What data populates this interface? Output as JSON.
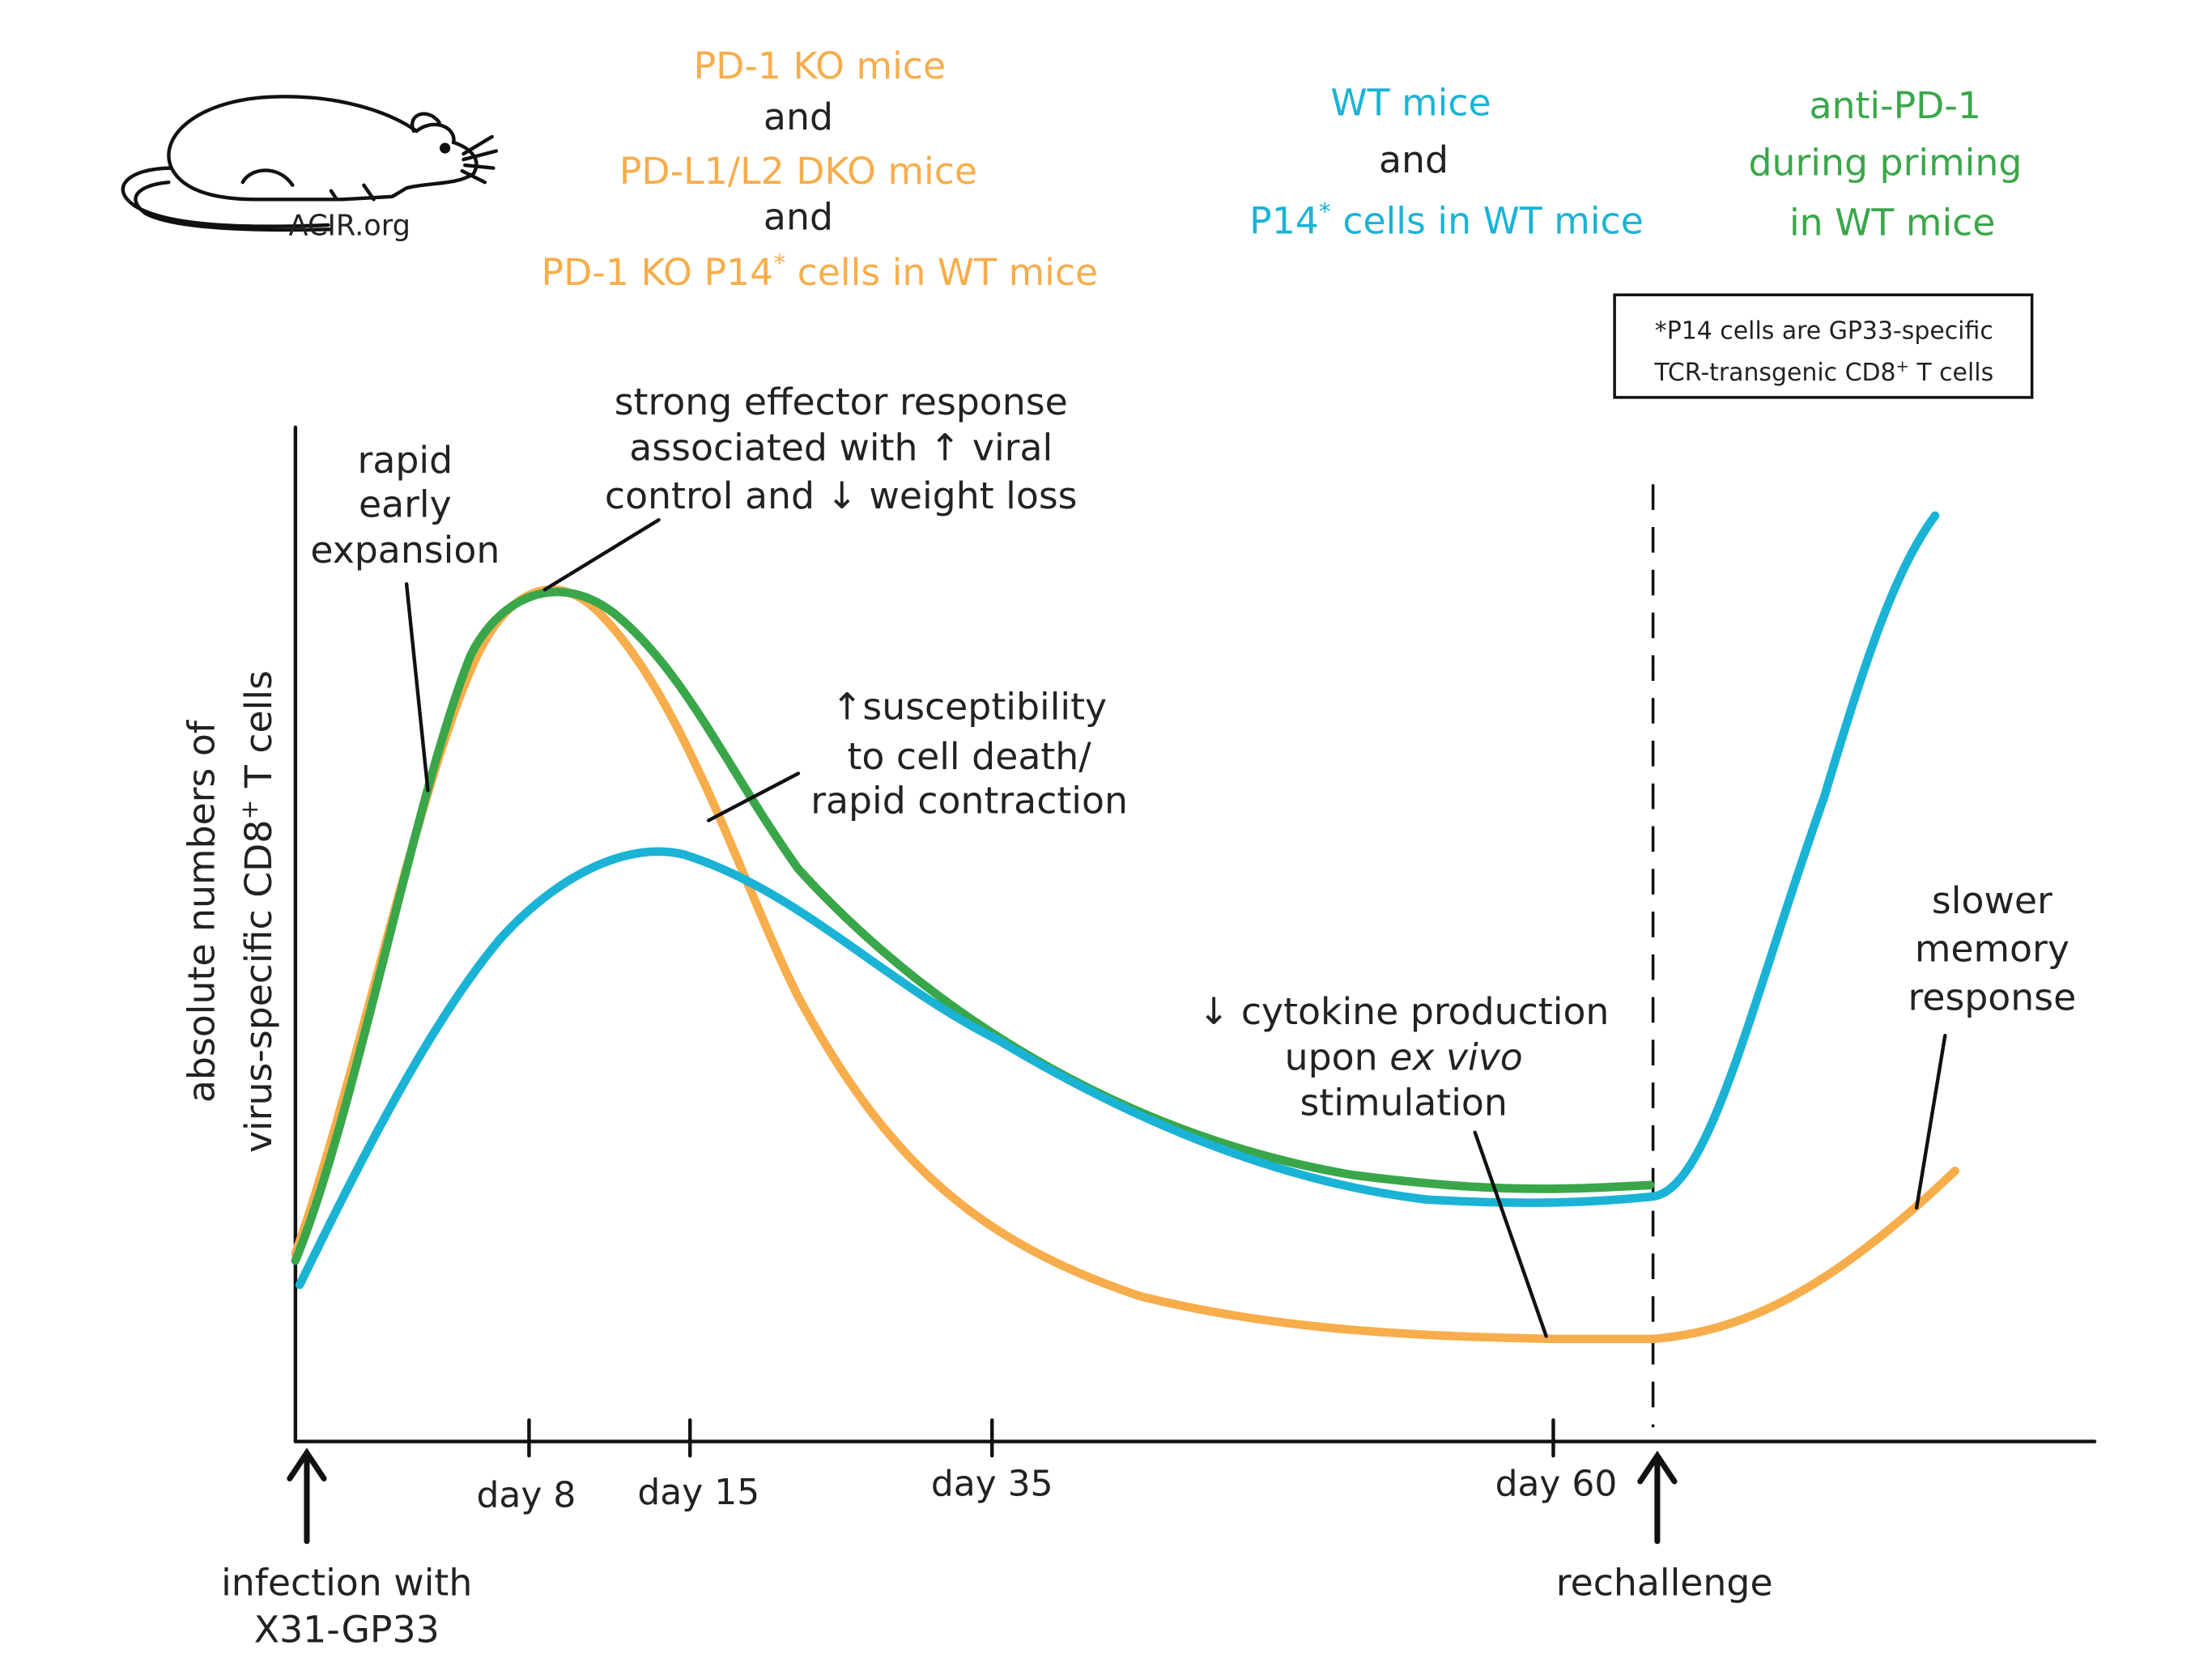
{
  "logo": "ACIR.org",
  "header": [
    {
      "color": "#f7ad4b",
      "text": [
        "PD-1  KO  mice"
      ]
    },
    {
      "color": "#222222",
      "text": [
        "and"
      ]
    },
    {
      "color": "#f7ad4b",
      "text": [
        "PD-L1/L2  DKO mice"
      ]
    },
    {
      "color": "#222222",
      "text": [
        "and"
      ]
    },
    {
      "color": "#f7ad4b",
      "text": [
        "PD-1  KO  P14",
        {
          "sup": "*"
        },
        " cells in WT mice"
      ]
    },
    {
      "color": "#1ab3d6",
      "text": [
        "WT mice"
      ]
    },
    {
      "color": "#222222",
      "text": [
        "and"
      ]
    },
    {
      "color": "#1ab3d6",
      "text": [
        "P14",
        {
          "sup": "*"
        },
        " cells in WT mice"
      ]
    },
    {
      "color": "#3aa64a",
      "text": [
        "anti-PD-1"
      ]
    },
    {
      "color": "#3aa64a",
      "text": [
        "during  priming"
      ]
    },
    {
      "color": "#3aa64a",
      "text": [
        "in WT mice"
      ]
    }
  ],
  "footnote": [
    [
      "*P14 cells are GP33-specific"
    ],
    [
      "TCR-transgenic CD8",
      {
        "sup": "+"
      },
      " T cells"
    ]
  ],
  "y_axis_label": [
    [
      "absolute numbers of"
    ],
    [
      "virus-specific CD8",
      {
        "sup": "+"
      },
      " T cells"
    ]
  ],
  "x_ticks": [
    "day 8",
    "day 15",
    "day 35",
    "day 60"
  ],
  "events": {
    "infection": [
      [
        "infection  with"
      ],
      [
        "X31-GP33"
      ]
    ],
    "rechallenge": [
      [
        "rechallenge"
      ]
    ]
  },
  "annotations": {
    "rapid_expansion": [
      [
        "rapid"
      ],
      [
        "early"
      ],
      [
        "expansion"
      ]
    ],
    "effector_response": [
      [
        "strong  effector response"
      ],
      [
        "associated with ↑ viral"
      ],
      [
        "control and ↓ weight loss"
      ]
    ],
    "contraction": [
      [
        "↑susceptibility"
      ],
      [
        "to cell death/"
      ],
      [
        "rapid contraction"
      ]
    ],
    "cytokine": [
      [
        "↓ cytokine production"
      ],
      [
        "upon ",
        {
          "italic": "ex vivo"
        }
      ],
      [
        "stimulation"
      ]
    ],
    "memory": [
      [
        "slower"
      ],
      [
        "memory"
      ],
      [
        "response"
      ]
    ]
  }
}
